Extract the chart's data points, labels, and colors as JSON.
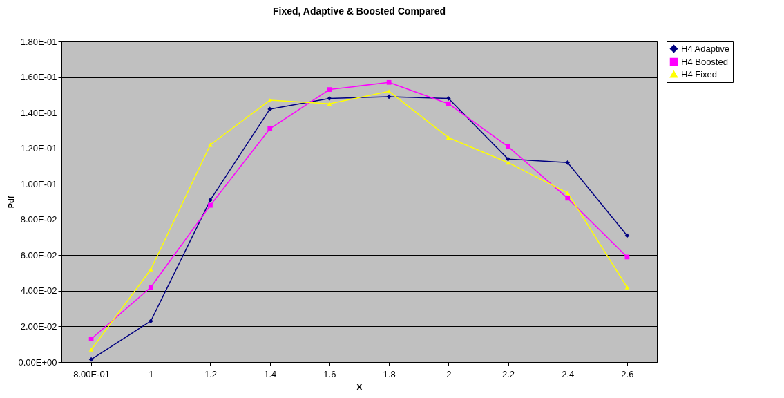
{
  "chart_data": {
    "type": "line",
    "title": "Fixed, Adaptive & Boosted Compared",
    "xlabel": "x",
    "ylabel": "Pdf",
    "categories": [
      "8.00E-01",
      "1",
      "1.2",
      "1.4",
      "1.6",
      "1.8",
      "2",
      "2.2",
      "2.4",
      "2.6"
    ],
    "series": [
      {
        "name": "H4 Adaptive",
        "color": "#000080",
        "marker": "diamond",
        "values": [
          0.0015,
          0.023,
          0.091,
          0.142,
          0.148,
          0.149,
          0.148,
          0.114,
          0.112,
          0.071
        ]
      },
      {
        "name": "H4 Boosted",
        "color": "#ff00ff",
        "marker": "square",
        "values": [
          0.013,
          0.042,
          0.088,
          0.131,
          0.153,
          0.157,
          0.145,
          0.121,
          0.092,
          0.059
        ]
      },
      {
        "name": "H4 Fixed",
        "color": "#ffff00",
        "marker": "triangle",
        "values": [
          0.007,
          0.052,
          0.122,
          0.147,
          0.145,
          0.152,
          0.126,
          0.112,
          0.095,
          0.042
        ]
      }
    ],
    "ylim": [
      0,
      0.18
    ],
    "yticks": [
      {
        "value": 0,
        "label": "0.00E+00"
      },
      {
        "value": 0.02,
        "label": "2.00E-02"
      },
      {
        "value": 0.04,
        "label": "4.00E-02"
      },
      {
        "value": 0.06,
        "label": "6.00E-02"
      },
      {
        "value": 0.08,
        "label": "8.00E-02"
      },
      {
        "value": 0.1,
        "label": "1.00E-01"
      },
      {
        "value": 0.12,
        "label": "1.20E-01"
      },
      {
        "value": 0.14,
        "label": "1.40E-01"
      },
      {
        "value": 0.16,
        "label": "1.60E-01"
      },
      {
        "value": 0.18,
        "label": "1.80E-01"
      }
    ],
    "grid": "y",
    "legend": "right",
    "line_style": "solid"
  }
}
